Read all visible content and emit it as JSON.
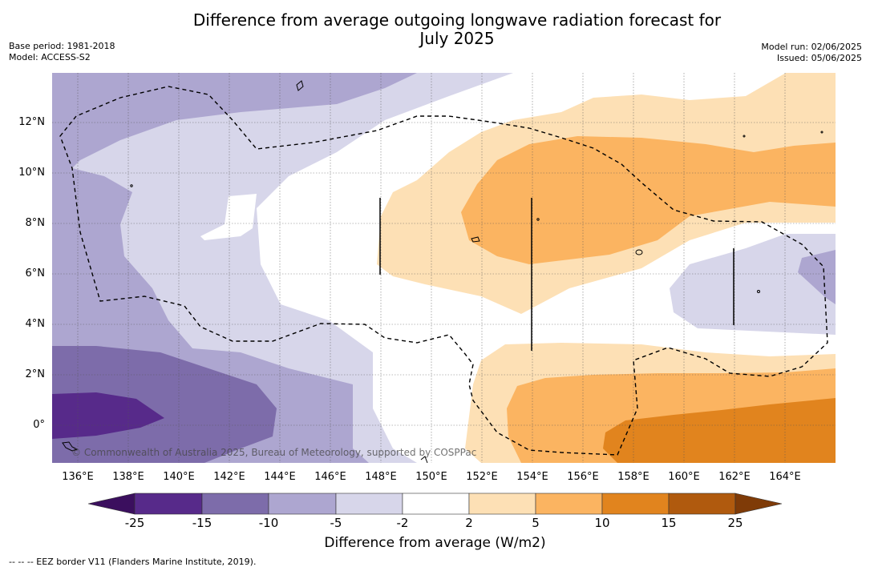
{
  "header": {
    "title_line1": "Difference from average outgoing longwave radiation forecast for",
    "title_line2": "July 2025",
    "base_period": "Base period: 1981-2018",
    "model": "Model: ACCESS-S2",
    "model_run": "Model run: 02/06/2025",
    "issued": "Issued: 05/06/2025"
  },
  "map": {
    "lon_labels": [
      "136°E",
      "138°E",
      "140°E",
      "142°E",
      "144°E",
      "146°E",
      "148°E",
      "150°E",
      "152°E",
      "154°E",
      "156°E",
      "158°E",
      "160°E",
      "162°E",
      "164°E"
    ],
    "lat_labels": [
      "12°N",
      "10°N",
      "8°N",
      "6°N",
      "4°N",
      "2°N",
      "0°"
    ],
    "copyright": "© Commonwealth of Australia 2025, Bureau of Meteorology, supported by COSPPac"
  },
  "colorbar": {
    "ticks": [
      "-25",
      "-15",
      "-10",
      "-5",
      "-2",
      "2",
      "5",
      "10",
      "15",
      "25"
    ],
    "colors": [
      "#3b0f5e",
      "#572a8a",
      "#7d6caa",
      "#ada6d0",
      "#d7d6ea",
      "#ffffff",
      "#fde0b5",
      "#fbb461",
      "#e1841e",
      "#b05a0e",
      "#7f3b08"
    ],
    "label": "Difference from average (W/m2)"
  },
  "legend_note": "--  --  -- EEZ border V11 (Flanders Marine Institute, 2019)."
}
